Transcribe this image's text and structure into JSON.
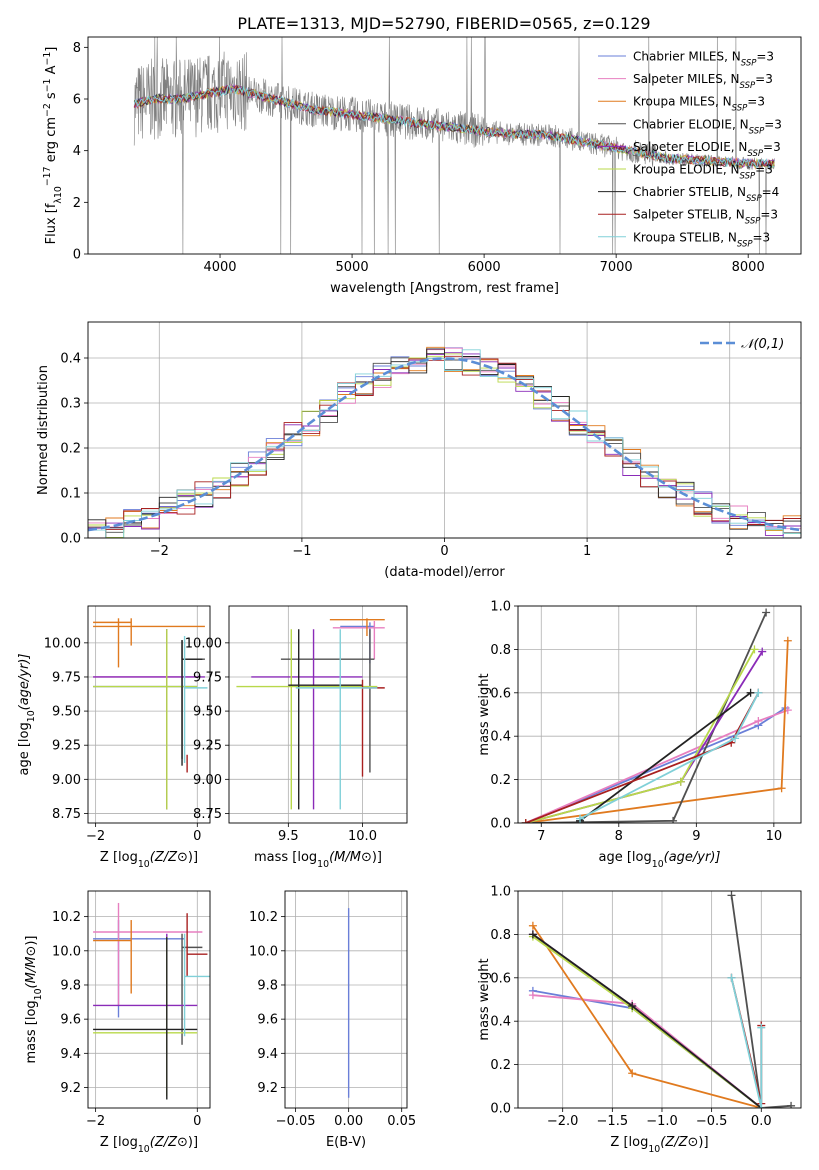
{
  "figure": {
    "title": "PLATE=1313, MJD=52790, FIBERID=0565, z=0.129",
    "colors": [
      "#6a7fd8",
      "#e77fc0",
      "#e07a1f",
      "#505050",
      "#8a2bb8",
      "#b8d84a",
      "#222222",
      "#a82020",
      "#80d0d8"
    ]
  },
  "chart_data": [
    {
      "id": "spectrum",
      "type": "line",
      "xlabel": "wavelength [Angstrom, rest frame]",
      "ylabel": "Flux [f",
      "ylabel_parts": [
        "Flux [f",
        "λ",
        "10",
        "−17",
        " erg cm",
        "−2",
        " s",
        "−1",
        " A",
        "−1",
        "]"
      ],
      "xlim": [
        3000,
        8400
      ],
      "ylim": [
        0,
        8.4
      ],
      "xticks": [
        4000,
        5000,
        6000,
        7000,
        8000
      ],
      "yticks": [
        0,
        2,
        4,
        6,
        8
      ],
      "grid": false,
      "legend_position": "upper-right",
      "legend": [
        {
          "text": "Chabrier MILES, N",
          "sub": "SSP",
          "tail": "=3"
        },
        {
          "text": "Salpeter MILES, N",
          "sub": "SSP",
          "tail": "=3"
        },
        {
          "text": "Kroupa MILES, N",
          "sub": "SSP",
          "tail": "=3"
        },
        {
          "text": "Chabrier ELODIE, N",
          "sub": "SSP",
          "tail": "=3"
        },
        {
          "text": "Salpeter ELODIE, N",
          "sub": "SSP",
          "tail": "=3"
        },
        {
          "text": "Kroupa ELODIE, N",
          "sub": "SSP",
          "tail": "=3"
        },
        {
          "text": "Chabrier STELIB, N",
          "sub": "SSP",
          "tail": "=4"
        },
        {
          "text": "Salpeter STELIB, N",
          "sub": "SSP",
          "tail": "=3"
        },
        {
          "text": "Kroupa STELIB, N",
          "sub": "SSP",
          "tail": "=3"
        }
      ],
      "trend": {
        "x": [
          3350,
          3500,
          3700,
          3900,
          4100,
          4400,
          4700,
          5000,
          5300,
          5600,
          5900,
          6200,
          6500,
          6800,
          7100,
          7400,
          7700,
          8000,
          8200
        ],
        "y": [
          5.8,
          6.0,
          6.0,
          6.2,
          6.4,
          6.0,
          5.6,
          5.4,
          5.2,
          5.0,
          4.8,
          4.65,
          4.6,
          4.3,
          4.0,
          3.7,
          3.6,
          3.5,
          3.5
        ]
      }
    },
    {
      "id": "residuals",
      "type": "histogram",
      "xlabel": "(data-model)/error",
      "ylabel": "Normed distribution",
      "xlim": [
        -2.5,
        2.5
      ],
      "ylim": [
        0,
        0.48
      ],
      "xticks": [
        -2,
        -1,
        0,
        1,
        2
      ],
      "yticks": [
        0.0,
        0.1,
        0.2,
        0.3,
        0.4
      ],
      "grid": true,
      "legend_position": "upper-right",
      "legend": "𝒩(0,1)",
      "bin_width": 0.125
    },
    {
      "id": "age-vs-Z",
      "type": "errorbar",
      "xlabel": "Z [log",
      "xlabel_parts": [
        "Z [log",
        "10",
        "(Z/Z",
        "⊙",
        ")]"
      ],
      "ylabel": "age  [log",
      "ylabel_parts": [
        "age  [log",
        "10",
        "(age/yr)]"
      ],
      "xlim": [
        -2.15,
        0.25
      ],
      "ylim": [
        8.68,
        10.27
      ],
      "xticks": [
        -2,
        0
      ],
      "yticks": [
        8.75,
        9.0,
        9.25,
        9.5,
        9.75,
        10.0
      ],
      "grid": true,
      "points": [
        {
          "x": -0.6,
          "xmin": -2.05,
          "xmax": 0.0,
          "y": 9.68,
          "ymin": 8.78,
          "ymax": 10.1
        },
        {
          "x": -0.6,
          "xmin": -2.05,
          "xmax": 0.0,
          "y": 9.75,
          "ymin": 8.78,
          "ymax": 10.1
        },
        {
          "x": -1.55,
          "xmin": -2.05,
          "xmax": 0.15,
          "y": 10.12,
          "ymin": 9.82,
          "ymax": 10.18
        },
        {
          "x": -0.3,
          "xmin": -0.3,
          "xmax": 0.15,
          "y": 9.88,
          "ymin": 9.15,
          "ymax": 10.02
        },
        {
          "x": -0.6,
          "xmin": -2.05,
          "xmax": 0.15,
          "y": 9.75,
          "ymin": 8.78,
          "ymax": 10.1
        },
        {
          "x": -0.6,
          "xmin": -2.05,
          "xmax": 0.0,
          "y": 9.68,
          "ymin": 8.78,
          "ymax": 10.1
        },
        {
          "x": -0.3,
          "xmin": -0.3,
          "xmax": 0.1,
          "y": 9.88,
          "ymin": 9.1,
          "ymax": 10.02
        },
        {
          "x": -0.2,
          "xmin": -0.2,
          "xmax": -0.2,
          "y": 9.1,
          "ymin": 9.05,
          "ymax": 9.18
        },
        {
          "x": -0.25,
          "xmin": -0.25,
          "xmax": 0.2,
          "y": 9.67,
          "ymin": 9.12,
          "ymax": 10.05
        }
      ],
      "extra_points": [
        {
          "x": -1.3,
          "xmin": -2.05,
          "xmax": -1.3,
          "y": 10.15,
          "ymin": 9.98,
          "ymax": 10.18,
          "color": "#e07a1f"
        }
      ]
    },
    {
      "id": "age-vs-mass",
      "type": "errorbar",
      "xlabel": "mass [log",
      "xlabel_parts": [
        "mass [log",
        "10",
        "(M/M",
        "⊙",
        ")]"
      ],
      "xlim": [
        9.1,
        10.3
      ],
      "ylim": [
        8.68,
        10.27
      ],
      "xticks": [
        9.5,
        10.0
      ],
      "yticks": [
        8.75,
        9.0,
        9.25,
        9.5,
        9.75,
        10.0
      ],
      "grid": true,
      "points": [
        {
          "x": 10.05,
          "xmin": 9.85,
          "xmax": 10.08,
          "y": 10.12,
          "ymin": 9.85,
          "ymax": 10.15
        },
        {
          "x": 10.08,
          "xmin": 9.8,
          "xmax": 10.15,
          "y": 10.11,
          "ymin": 9.88,
          "ymax": 10.16
        },
        {
          "x": 10.03,
          "xmin": 9.78,
          "xmax": 10.15,
          "y": 10.17,
          "ymin": 10.05,
          "ymax": 10.18
        },
        {
          "x": 10.05,
          "xmin": 9.45,
          "xmax": 10.08,
          "y": 9.88,
          "ymin": 9.05,
          "ymax": 10.1
        },
        {
          "x": 9.67,
          "xmin": 9.25,
          "xmax": 10.0,
          "y": 9.75,
          "ymin": 8.78,
          "ymax": 10.1
        },
        {
          "x": 9.52,
          "xmin": 9.15,
          "xmax": 10.1,
          "y": 9.68,
          "ymin": 8.78,
          "ymax": 10.1
        },
        {
          "x": 9.57,
          "xmin": 9.5,
          "xmax": 10.0,
          "y": 9.69,
          "ymin": 8.78,
          "ymax": 10.1
        },
        {
          "x": 10.0,
          "xmin": 10.0,
          "xmax": 10.15,
          "y": 9.67,
          "ymin": 9.02,
          "ymax": 9.73
        },
        {
          "x": 9.85,
          "xmin": 9.55,
          "xmax": 10.1,
          "y": 9.67,
          "ymin": 8.78,
          "ymax": 10.1
        }
      ]
    },
    {
      "id": "weight-vs-age",
      "type": "line",
      "xlabel": "age  [log",
      "xlabel_parts": [
        "age  [log",
        "10",
        "(age/yr)]"
      ],
      "ylabel": "mass weight",
      "xlim": [
        6.7,
        10.35
      ],
      "ylim": [
        0,
        1.0
      ],
      "xticks": [
        7,
        8,
        9,
        10
      ],
      "yticks": [
        0.0,
        0.2,
        0.4,
        0.6,
        0.8,
        1.0
      ],
      "grid": true,
      "series": [
        {
          "x": [
            6.8,
            9.8,
            10.15
          ],
          "y": [
            0.0,
            0.45,
            0.53
          ]
        },
        {
          "x": [
            6.8,
            9.8,
            10.18
          ],
          "y": [
            0.0,
            0.47,
            0.52
          ]
        },
        {
          "x": [
            6.8,
            10.1,
            10.18
          ],
          "y": [
            0.0,
            0.16,
            0.84
          ]
        },
        {
          "x": [
            6.8,
            8.7,
            9.9
          ],
          "y": [
            0.0,
            0.01,
            0.97
          ]
        },
        {
          "x": [
            6.8,
            8.8,
            9.85
          ],
          "y": [
            0.0,
            0.19,
            0.79
          ]
        },
        {
          "x": [
            6.8,
            8.8,
            9.75
          ],
          "y": [
            0.0,
            0.19,
            0.8
          ]
        },
        {
          "x": [
            7.5,
            9.7
          ],
          "y": [
            0.01,
            0.6
          ]
        },
        {
          "x": [
            6.8,
            9.45,
            9.8
          ],
          "y": [
            0.0,
            0.37,
            0.6
          ]
        },
        {
          "x": [
            7.5,
            9.5,
            9.8
          ],
          "y": [
            0.02,
            0.39,
            0.6
          ]
        }
      ]
    },
    {
      "id": "mass-vs-Z",
      "type": "errorbar",
      "xlabel": "Z [log",
      "xlabel_parts": [
        "Z [log",
        "10",
        "(Z/Z",
        "⊙",
        ")]"
      ],
      "ylabel": "mass [log",
      "ylabel_parts": [
        "mass [log",
        "10",
        "(M/M",
        "⊙",
        ")]"
      ],
      "xlim": [
        -2.15,
        0.25
      ],
      "ylim": [
        9.08,
        10.35
      ],
      "xticks": [
        -2,
        0
      ],
      "yticks": [
        9.2,
        9.4,
        9.6,
        9.8,
        10.0,
        10.2
      ],
      "grid": true,
      "points": [
        {
          "x": -1.55,
          "xmin": -2.05,
          "xmax": -0.25,
          "y": 10.07,
          "ymin": 9.61,
          "ymax": 10.18
        },
        {
          "x": -1.55,
          "xmin": -2.05,
          "xmax": 0.1,
          "y": 10.11,
          "ymin": 9.68,
          "ymax": 10.28
        },
        {
          "x": -1.3,
          "xmin": -2.05,
          "xmax": -1.3,
          "y": 10.06,
          "ymin": 9.75,
          "ymax": 10.18
        },
        {
          "x": -0.3,
          "xmin": -0.3,
          "xmax": 0.1,
          "y": 10.02,
          "ymin": 9.45,
          "ymax": 10.1
        },
        {
          "x": -0.6,
          "xmin": -2.05,
          "xmax": 0.0,
          "y": 9.68,
          "ymin": 9.2,
          "ymax": 10.1
        },
        {
          "x": -0.6,
          "xmin": -2.05,
          "xmax": 0.0,
          "y": 9.52,
          "ymin": 9.15,
          "ymax": 10.08
        },
        {
          "x": -0.6,
          "xmin": -2.05,
          "xmax": 0.0,
          "y": 9.54,
          "ymin": 9.13,
          "ymax": 10.08
        },
        {
          "x": -0.2,
          "xmin": -0.2,
          "xmax": 0.2,
          "y": 9.98,
          "ymin": 9.85,
          "ymax": 10.22
        },
        {
          "x": -0.25,
          "xmin": -0.25,
          "xmax": 0.25,
          "y": 9.85,
          "ymin": 9.5,
          "ymax": 10.1
        }
      ]
    },
    {
      "id": "mass-vs-EBV",
      "type": "errorbar",
      "xlabel": "E(B-V)",
      "xlim": [
        -0.06,
        0.055
      ],
      "ylim": [
        9.08,
        10.35
      ],
      "xticks": [
        -0.05,
        0.0,
        0.05
      ],
      "xticklabels": [
        "−0.05",
        "0.00",
        "0.05"
      ],
      "yticks": [
        9.2,
        9.4,
        9.6,
        9.8,
        10.0,
        10.2
      ],
      "grid": true,
      "points": [
        {
          "x": 0.0,
          "xmin": 0.0,
          "xmax": 0.0,
          "y": 9.7,
          "ymin": 9.14,
          "ymax": 10.25
        }
      ]
    },
    {
      "id": "weight-vs-Z",
      "type": "line",
      "xlabel": "Z [log",
      "xlabel_parts": [
        "Z [log",
        "10",
        "(Z/Z",
        "⊙",
        ")]"
      ],
      "ylabel": "mass weight",
      "xlim": [
        -2.45,
        0.4
      ],
      "ylim": [
        0,
        1.0
      ],
      "xticks": [
        -2.0,
        -1.5,
        -1.0,
        -0.5,
        0.0
      ],
      "xticklabels": [
        "−2.0",
        "−1.5",
        "−1.0",
        "−0.5",
        "0.0"
      ],
      "yticks": [
        0.0,
        0.2,
        0.4,
        0.6,
        0.8,
        1.0
      ],
      "grid": true,
      "series": [
        {
          "x": [
            -2.3,
            -1.3,
            0.0
          ],
          "y": [
            0.54,
            0.46,
            0.0
          ]
        },
        {
          "x": [
            -2.3,
            -1.3,
            0.0
          ],
          "y": [
            0.52,
            0.48,
            0.0
          ]
        },
        {
          "x": [
            -2.3,
            -1.3,
            0.0
          ],
          "y": [
            0.84,
            0.16,
            0.0
          ]
        },
        {
          "x": [
            -0.3,
            0.0,
            0.3
          ],
          "y": [
            0.98,
            0.0,
            0.01
          ]
        },
        {
          "x": [
            -2.3,
            -1.3,
            0.0
          ],
          "y": [
            0.8,
            0.47,
            0.0
          ]
        },
        {
          "x": [
            -2.3,
            -1.3,
            0.0
          ],
          "y": [
            0.79,
            0.46,
            0.0
          ]
        },
        {
          "x": [
            -2.3,
            -1.3,
            0.0
          ],
          "y": [
            0.8,
            0.47,
            0.0
          ]
        },
        {
          "x": [
            -0.3,
            0.0,
            0.0
          ],
          "y": [
            0.6,
            0.02,
            0.38
          ]
        },
        {
          "x": [
            -0.3,
            0.0,
            0.0
          ],
          "y": [
            0.6,
            0.0,
            0.37
          ]
        }
      ]
    }
  ]
}
